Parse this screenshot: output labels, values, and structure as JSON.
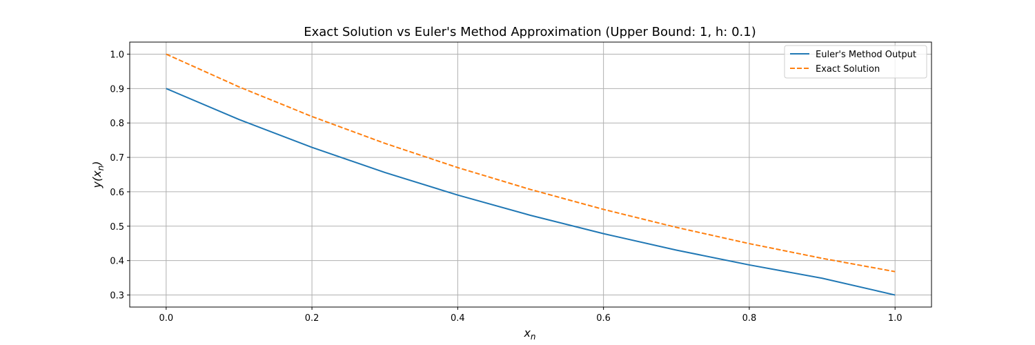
{
  "chart_data": {
    "type": "line",
    "title": "Exact Solution vs Euler's Method Approximation (Upper Bound: 1, h: 0.1)",
    "xlabel": {
      "base": "x",
      "sub": "n"
    },
    "ylabel": {
      "base": "y(x",
      "sub": "n",
      "close": ")"
    },
    "x": [
      0.0,
      0.1,
      0.2,
      0.3,
      0.4,
      0.5,
      0.6,
      0.7,
      0.8,
      0.9,
      1.0
    ],
    "series": [
      {
        "name": "Euler's Method Output",
        "color": "#1f77b4",
        "dash": "solid",
        "values": [
          0.9,
          0.81,
          0.729,
          0.6561,
          0.59049,
          0.531441,
          0.4782969,
          0.43046721,
          0.387420489,
          0.3486784401,
          0.3
        ]
      },
      {
        "name": "Exact Solution",
        "color": "#ff7f0e",
        "dash": "dashed",
        "values": [
          1.0,
          0.904837,
          0.818731,
          0.740818,
          0.67032,
          0.606531,
          0.548812,
          0.496585,
          0.449329,
          0.40657,
          0.367879
        ]
      }
    ],
    "xlim": [
      -0.05,
      1.05
    ],
    "ylim": [
      0.265,
      1.035
    ],
    "xticks": [
      0.0,
      0.2,
      0.4,
      0.6,
      0.8,
      1.0
    ],
    "xtick_labels": [
      "0.0",
      "0.2",
      "0.4",
      "0.6",
      "0.8",
      "1.0"
    ],
    "yticks": [
      0.3,
      0.4,
      0.5,
      0.6,
      0.7,
      0.8,
      0.9,
      1.0
    ],
    "ytick_labels": [
      "0.3",
      "0.4",
      "0.5",
      "0.6",
      "0.7",
      "0.8",
      "0.9",
      "1.0"
    ],
    "grid": true,
    "legend_position": "top-right",
    "grid_color": "#b0b0b0",
    "axis_color": "#000000"
  }
}
